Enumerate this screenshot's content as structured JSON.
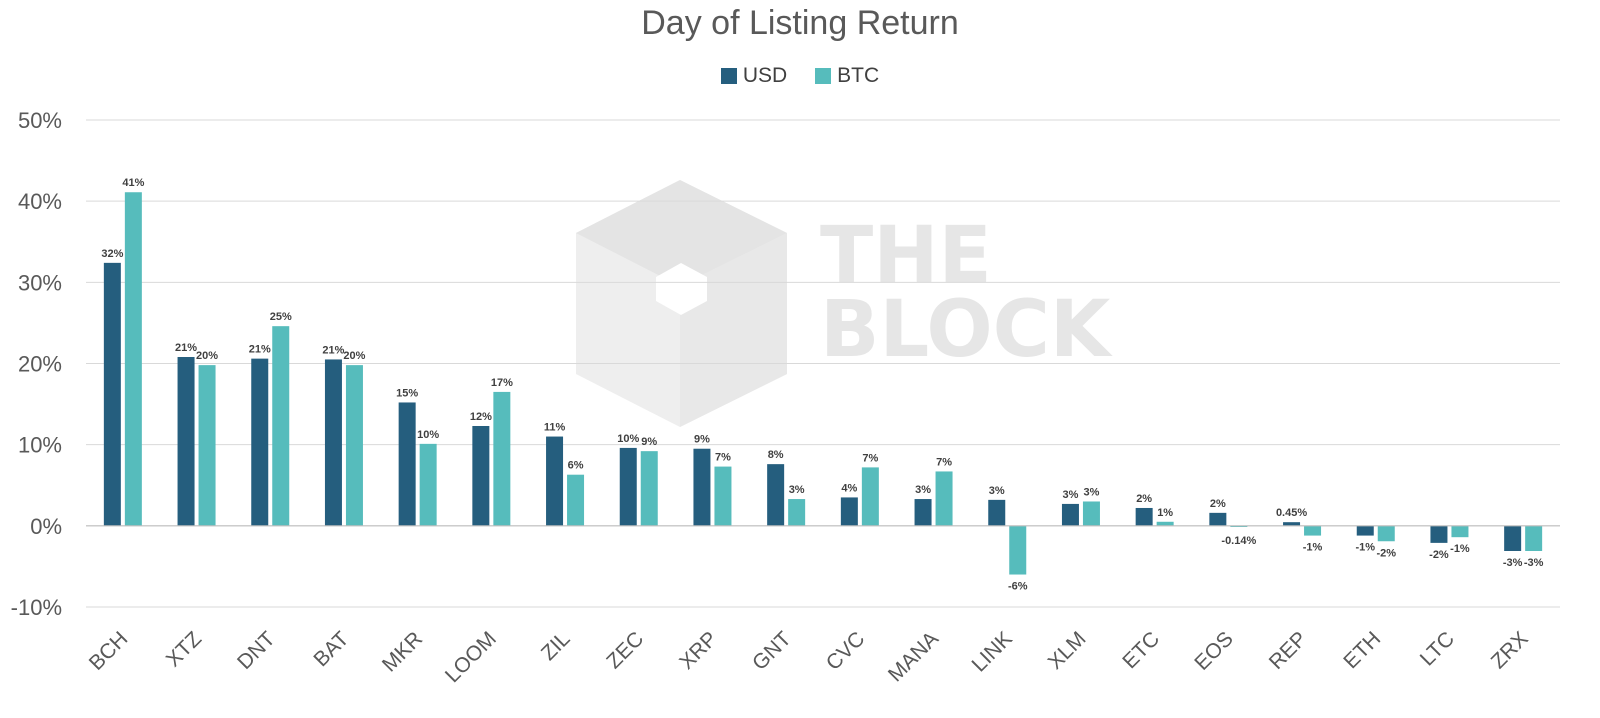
{
  "chart_data": {
    "type": "bar",
    "title": "Day of Listing Return",
    "xlabel": "",
    "ylabel": "",
    "ylim": [
      -10,
      50
    ],
    "yticks": [
      -10,
      0,
      10,
      20,
      30,
      40,
      50
    ],
    "ytick_labels": [
      "-10%",
      "0%",
      "10%",
      "20%",
      "30%",
      "40%",
      "50%"
    ],
    "grid": true,
    "legend_position": "top-center",
    "watermark": "THE BLOCK",
    "categories": [
      "BCH",
      "XTZ",
      "DNT",
      "BAT",
      "MKR",
      "LOOM",
      "ZIL",
      "ZEC",
      "XRP",
      "GNT",
      "CVC",
      "MANA",
      "LINK",
      "XLM",
      "ETC",
      "EOS",
      "REP",
      "ETH",
      "LTC",
      "ZRX"
    ],
    "series": [
      {
        "name": "USD",
        "color": "#255e7e",
        "values": [
          32.4,
          20.8,
          20.6,
          20.5,
          15.2,
          12.3,
          11.0,
          9.6,
          9.5,
          7.6,
          3.5,
          3.3,
          3.2,
          2.7,
          2.2,
          1.6,
          0.45,
          -1.2,
          -2.1,
          -3.1
        ],
        "labels": [
          "32%",
          "21%",
          "21%",
          "21%",
          "15%",
          "12%",
          "11%",
          "10%",
          "9%",
          "8%",
          "4%",
          "3%",
          "3%",
          "3%",
          "2%",
          "2%",
          "0.45%",
          "-1%",
          "-2%",
          "-3%"
        ]
      },
      {
        "name": "BTC",
        "color": "#56bcbc",
        "values": [
          41.1,
          19.8,
          24.6,
          19.8,
          10.1,
          16.5,
          6.3,
          9.2,
          7.3,
          3.3,
          7.2,
          6.7,
          -6.0,
          3.0,
          0.5,
          -0.14,
          -1.2,
          -1.9,
          -1.4,
          -3.1
        ],
        "labels": [
          "41%",
          "20%",
          "25%",
          "20%",
          "10%",
          "17%",
          "6%",
          "9%",
          "7%",
          "3%",
          "7%",
          "7%",
          "-6%",
          "3%",
          "1%",
          "-0.14%",
          "-1%",
          "-2%",
          "-1%",
          "-3%"
        ]
      }
    ]
  }
}
